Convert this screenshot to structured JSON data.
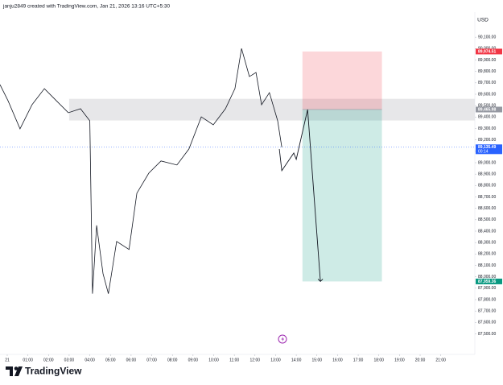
{
  "header": "janju2849 created with TradingView.com, Jan 21, 2026 13:16 UTC+5:30",
  "currency": "USD",
  "brand": "TradingView",
  "chart_data": {
    "type": "line",
    "color": "#131722",
    "x": [
      -0.35,
      0.04,
      0.62,
      1.2,
      1.8,
      2.38,
      2.96,
      3.55,
      4.0,
      4.13,
      4.33,
      4.64,
      4.9,
      5.3,
      5.9,
      6.28,
      6.86,
      7.45,
      8.22,
      8.8,
      9.4,
      9.98,
      10.57,
      11.03,
      11.35,
      11.73,
      12.05,
      12.32,
      12.7,
      13.1,
      13.3
    ],
    "values": [
      89684,
      89543,
      89297,
      89508,
      89649,
      89543,
      89438,
      89473,
      89367,
      87852,
      88451,
      88028,
      87852,
      88310,
      88240,
      88733,
      88909,
      89015,
      88980,
      89120,
      89402,
      89332,
      89473,
      89649,
      90001,
      89755,
      89790,
      89508,
      89614,
      89367,
      89135.49
    ],
    "xlim": [
      -0.35,
      22.65
    ],
    "ylim": [
      87320,
      90320
    ],
    "xticks": [
      {
        "value": 0,
        "label": "21"
      },
      {
        "value": 1,
        "label": "01:00"
      },
      {
        "value": 2,
        "label": "02:00"
      },
      {
        "value": 3,
        "label": "03:00"
      },
      {
        "value": 4,
        "label": "04:00"
      },
      {
        "value": 5,
        "label": "05:00"
      },
      {
        "value": 6,
        "label": "06:00"
      },
      {
        "value": 7,
        "label": "07:00"
      },
      {
        "value": 8,
        "label": "08:00"
      },
      {
        "value": 9,
        "label": "09:00"
      },
      {
        "value": 10,
        "label": "10:00"
      },
      {
        "value": 11,
        "label": "11:00"
      },
      {
        "value": 12,
        "label": "12:00"
      },
      {
        "value": 13,
        "label": "13:00"
      },
      {
        "value": 14,
        "label": "14:00"
      },
      {
        "value": 15,
        "label": "15:00"
      },
      {
        "value": 16,
        "label": "16:00"
      },
      {
        "value": 17,
        "label": "17:00"
      },
      {
        "value": 18,
        "label": "18:00"
      },
      {
        "value": 19,
        "label": "19:00"
      },
      {
        "value": 20,
        "label": "20:00"
      },
      {
        "value": 21,
        "label": "21:00"
      }
    ],
    "yticks": [
      {
        "value": 87500,
        "label": "87,500.00"
      },
      {
        "value": 87600,
        "label": "87,600.00"
      },
      {
        "value": 87700,
        "label": "87,700.00"
      },
      {
        "value": 87800,
        "label": "87,800.00"
      },
      {
        "value": 87900,
        "label": "87,900.00"
      },
      {
        "value": 88000,
        "label": "88,000.00"
      },
      {
        "value": 88100,
        "label": "88,100.00"
      },
      {
        "value": 88200,
        "label": "88,200.00"
      },
      {
        "value": 88300,
        "label": "88,300.00"
      },
      {
        "value": 88400,
        "label": "88,400.00"
      },
      {
        "value": 88500,
        "label": "88,500.00"
      },
      {
        "value": 88600,
        "label": "88,600.00"
      },
      {
        "value": 88700,
        "label": "88,700.00"
      },
      {
        "value": 88800,
        "label": "88,800.00"
      },
      {
        "value": 88900,
        "label": "88,900.00"
      },
      {
        "value": 89000,
        "label": "89,000.00"
      },
      {
        "value": 89100,
        "label": "89,100.00"
      },
      {
        "value": 89200,
        "label": "89,200.00"
      },
      {
        "value": 89300,
        "label": "89,300.00"
      },
      {
        "value": 89400,
        "label": "89,400.00"
      },
      {
        "value": 89500,
        "label": "89,500.00"
      },
      {
        "value": 89600,
        "label": "89,600.00"
      },
      {
        "value": 89700,
        "label": "89,700.00"
      },
      {
        "value": 89800,
        "label": "89,800.00"
      },
      {
        "value": 89900,
        "label": "89,900.00"
      },
      {
        "value": 90000,
        "label": "90,000.00"
      },
      {
        "value": 90100,
        "label": "90,100.00"
      }
    ],
    "zone": [
      89370,
      89560
    ],
    "position": {
      "stop": {
        "value": 89974.51,
        "label": "89,974.51",
        "color": "#f23645"
      },
      "entry": {
        "value": 89465.98,
        "label": "89,465.98",
        "color": "#9598a1"
      },
      "target": {
        "value": 87959.36,
        "label": "87,959.36",
        "color": "#089981"
      },
      "xlim": [
        14.3,
        18.15
      ]
    },
    "last_price": {
      "value": 89135.49,
      "label": "89,135.49",
      "sublabel": "00:14",
      "color": "#2962ff"
    },
    "projection": {
      "x": [
        13.18,
        13.3,
        13.88,
        14.0,
        14.55,
        15.17
      ],
      "values": [
        89120,
        88930,
        89085,
        89029,
        89465.98,
        87959.36
      ]
    }
  }
}
